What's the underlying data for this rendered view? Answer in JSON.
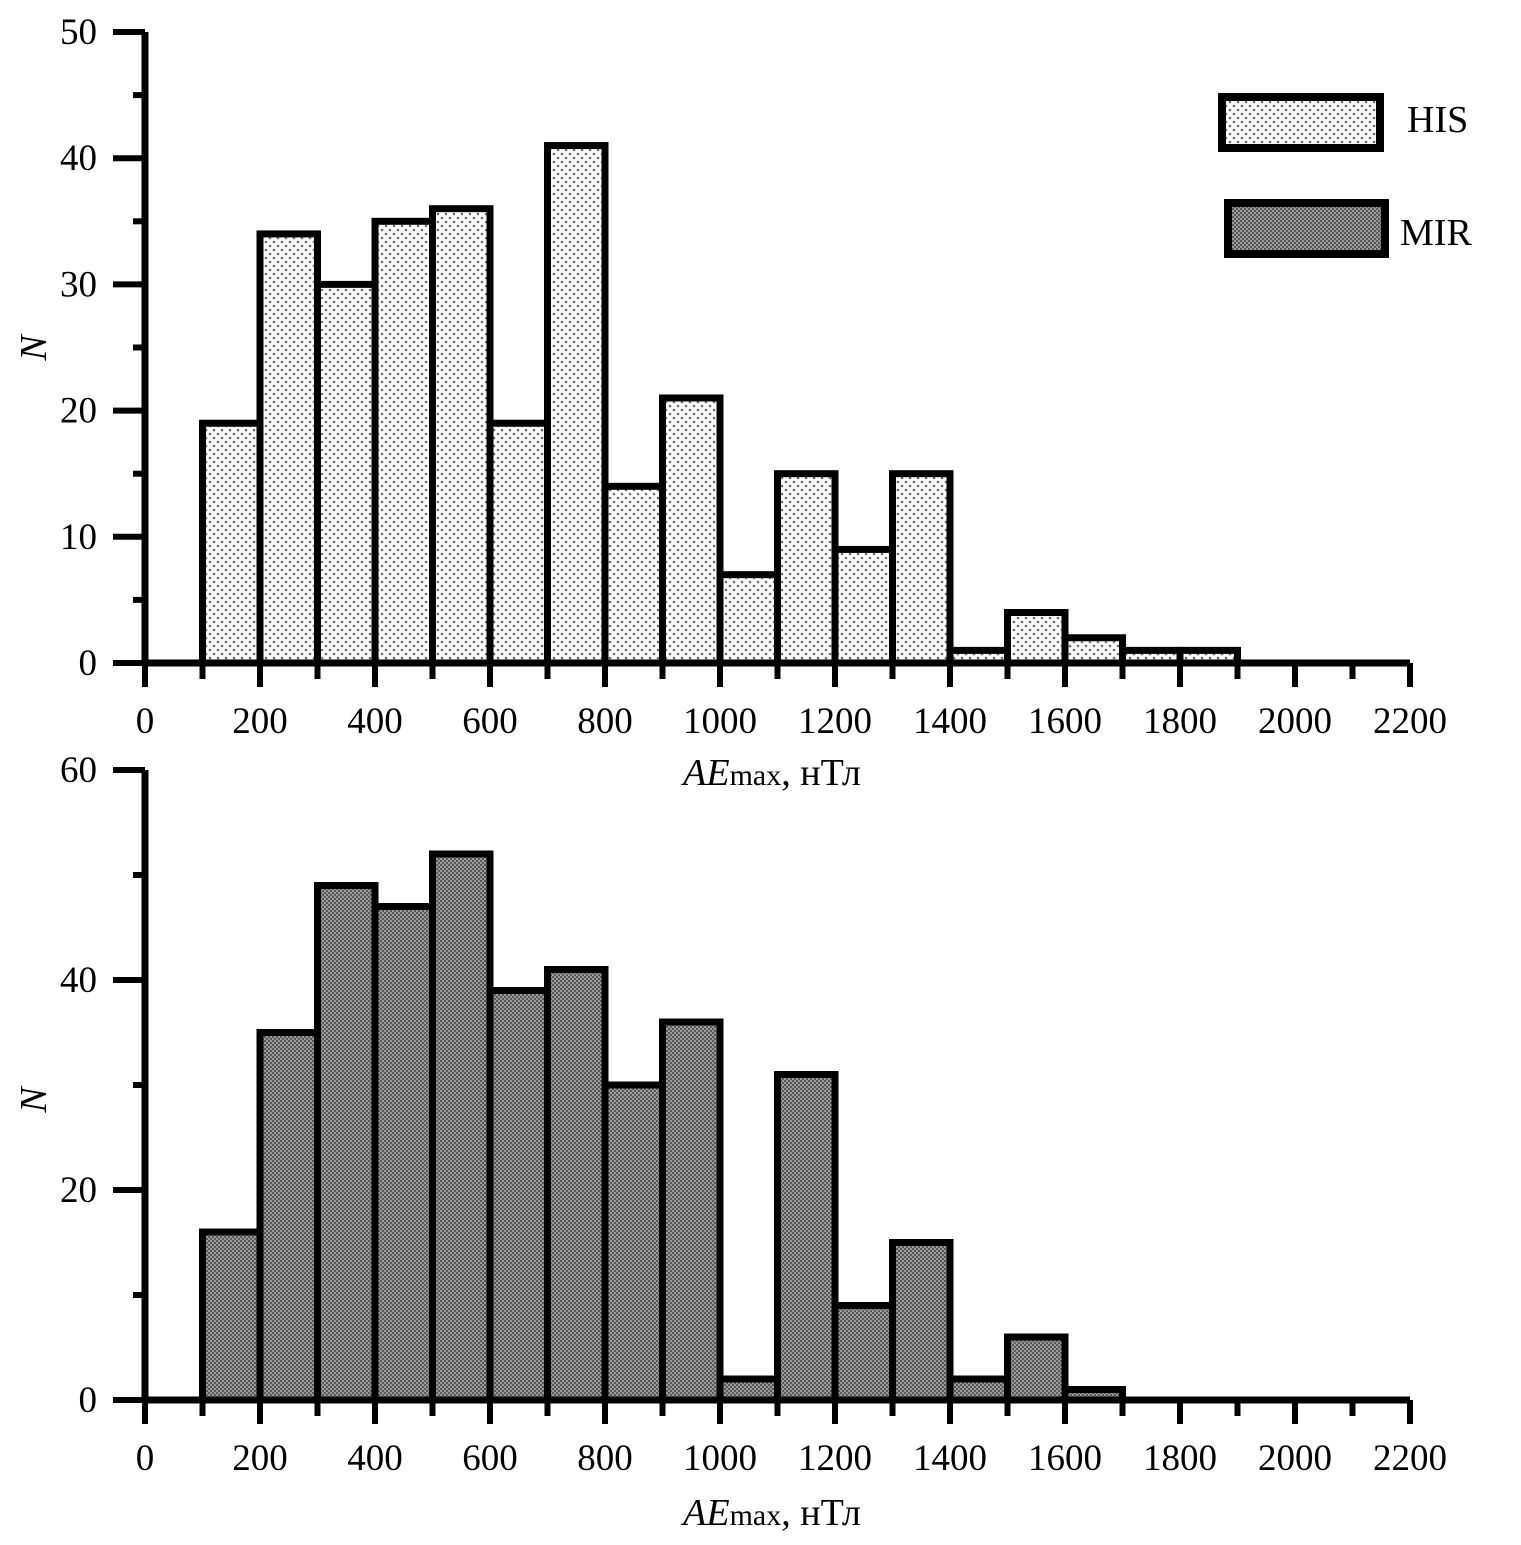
{
  "chart_data": [
    {
      "type": "bar",
      "x_bin_start": [
        100,
        200,
        300,
        400,
        500,
        600,
        700,
        800,
        900,
        1000,
        1100,
        1200,
        1300,
        1400,
        1500,
        1600,
        1700,
        1800
      ],
      "bin_width": 100,
      "series": [
        {
          "name": "HIS",
          "values": [
            19,
            34,
            30,
            35,
            36,
            19,
            41,
            14,
            21,
            7,
            15,
            9,
            15,
            1,
            4,
            2,
            1,
            1
          ]
        }
      ],
      "xlim": [
        0,
        2200
      ],
      "ylim": [
        0,
        50
      ],
      "x_ticks": [
        0,
        200,
        400,
        600,
        800,
        1000,
        1200,
        1400,
        1600,
        1800,
        2000,
        2200
      ],
      "y_ticks": [
        0,
        10,
        20,
        30,
        40,
        50
      ],
      "x_label": {
        "italic": "AE",
        "sub": "max",
        "unit": ", нТл"
      },
      "y_label": "N",
      "legend": [
        {
          "label": "HIS",
          "pattern": "dots",
          "fill": "#ffffff"
        },
        {
          "label": "MIR",
          "pattern": "mesh",
          "fill": "#8c8c8c"
        }
      ]
    },
    {
      "type": "bar",
      "x_bin_start": [
        100,
        200,
        300,
        400,
        500,
        600,
        700,
        800,
        900,
        1000,
        1100,
        1200,
        1300,
        1400,
        1500,
        1600
      ],
      "bin_width": 100,
      "series": [
        {
          "name": "MIR",
          "values": [
            16,
            35,
            49,
            47,
            52,
            39,
            41,
            30,
            36,
            2,
            31,
            9,
            15,
            2,
            6,
            1
          ]
        }
      ],
      "xlim": [
        0,
        2200
      ],
      "ylim": [
        0,
        60
      ],
      "x_ticks": [
        0,
        200,
        400,
        600,
        800,
        1000,
        1200,
        1400,
        1600,
        1800,
        2000,
        2200
      ],
      "y_ticks": [
        0,
        20,
        40,
        60
      ],
      "x_label": {
        "italic": "AE",
        "sub": "max",
        "unit": ", нТл"
      },
      "y_label": "N"
    }
  ],
  "colors": {
    "his_fill": "#ffffff",
    "his_dot": "#6e6e6e",
    "mir_fill": "#8c8c8c",
    "mir_mesh": "#3c3c3c",
    "axis": "#000000"
  }
}
